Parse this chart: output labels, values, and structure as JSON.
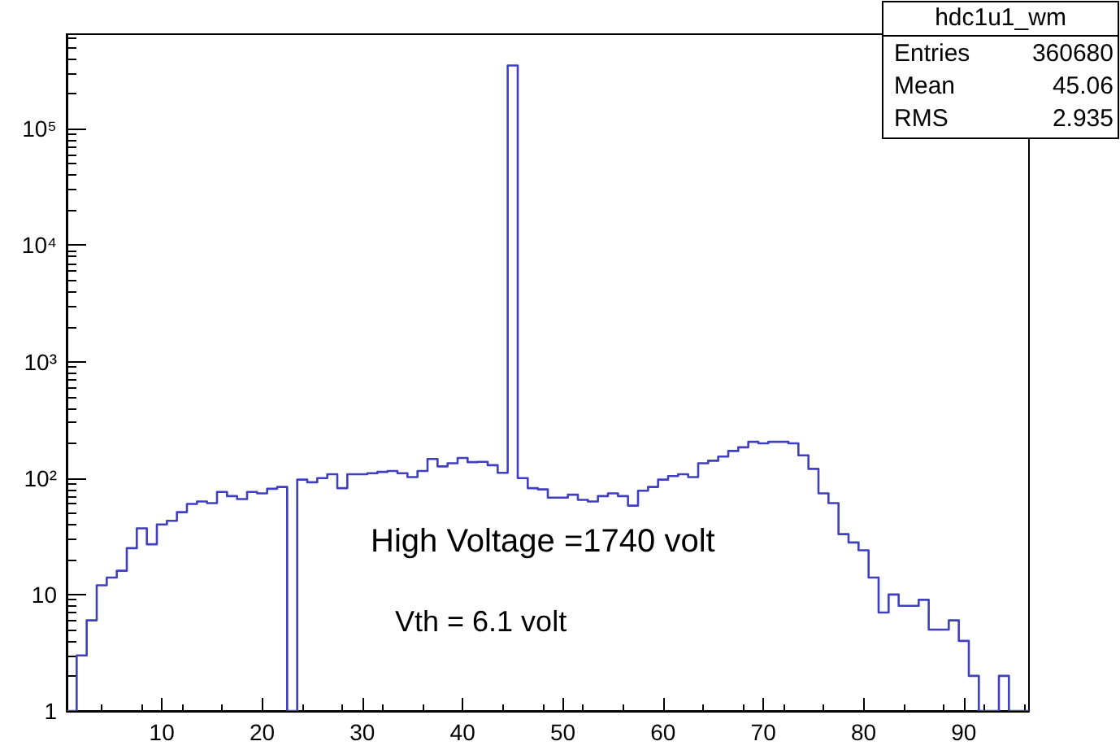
{
  "chart_data": {
    "type": "histogram",
    "title": "hdc1u1_wm",
    "bins": [
      0.5,
      1.5,
      2.5,
      3.5,
      4.5,
      5.5,
      6.5,
      7.5,
      8.5,
      9.5,
      10.5,
      11.5,
      12.5,
      13.5,
      14.5,
      15.5,
      16.5,
      17.5,
      18.5,
      19.5,
      20.5,
      21.5,
      22.5,
      23.5,
      24.5,
      25.5,
      26.5,
      27.5,
      28.5,
      29.5,
      30.5,
      31.5,
      32.5,
      33.5,
      34.5,
      35.5,
      36.5,
      37.5,
      38.5,
      39.5,
      40.5,
      41.5,
      42.5,
      43.5,
      44.5,
      45.5,
      46.5,
      47.5,
      48.5,
      49.5,
      50.5,
      51.5,
      52.5,
      53.5,
      54.5,
      55.5,
      56.5,
      57.5,
      58.5,
      59.5,
      60.5,
      61.5,
      62.5,
      63.5,
      64.5,
      65.5,
      66.5,
      67.5,
      68.5,
      69.5,
      70.5,
      71.5,
      72.5,
      73.5,
      74.5,
      75.5,
      76.5,
      77.5,
      78.5,
      79.5,
      80.5,
      81.5,
      82.5,
      83.5,
      84.5,
      85.5,
      86.5,
      87.5,
      88.5,
      89.5,
      90.5,
      91.5,
      92.5,
      93.5,
      94.5,
      95.5,
      96.5
    ],
    "values": [
      null,
      3,
      6,
      12,
      14,
      16,
      25,
      37,
      27,
      40,
      43,
      51,
      60,
      63,
      61,
      76,
      70,
      66,
      76,
      74,
      81,
      84,
      null,
      97,
      92,
      100,
      108,
      82,
      108,
      108,
      110,
      113,
      115,
      110,
      102,
      115,
      146,
      126,
      134,
      149,
      137,
      138,
      129,
      111,
      350000,
      100,
      82,
      80,
      68,
      68,
      72,
      65,
      63,
      70,
      74,
      70,
      58,
      78,
      84,
      97,
      104,
      108,
      102,
      134,
      141,
      153,
      171,
      184,
      205,
      199,
      205,
      205,
      199,
      157,
      120,
      74,
      61,
      33,
      28,
      24,
      14,
      7,
      10,
      8,
      8,
      9,
      5,
      5,
      6,
      4,
      2,
      null,
      null,
      2,
      null,
      null
    ],
    "color": "#3f3fbf",
    "xlim": [
      0.5,
      96.5
    ],
    "xticks": [
      10,
      20,
      30,
      40,
      50,
      60,
      70,
      80,
      90
    ],
    "ylim": [
      1,
      650000
    ],
    "yticks": [
      1,
      10,
      {
        "value": 100,
        "label": "10²"
      },
      {
        "value": 1000,
        "label": "10³"
      },
      {
        "value": 10000,
        "label": "10⁴"
      },
      {
        "value": 100000,
        "label": "10⁵"
      }
    ],
    "log": "y",
    "grid": false,
    "annotations": [
      "Entries 360680",
      "Mean 45.06",
      "RMS 2.935",
      "High Voltage =1740 volt",
      "Vth = 6.1 volt"
    ]
  }
}
